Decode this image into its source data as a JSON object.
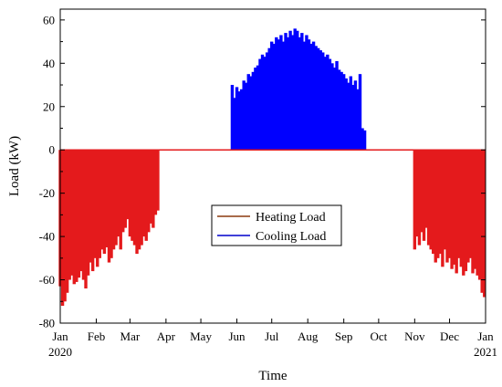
{
  "chart_data": {
    "type": "bar",
    "title": "",
    "xlabel": "Time",
    "ylabel": "Load (kW)",
    "ylim": [
      -80,
      65
    ],
    "yticks": [
      -80,
      -60,
      -40,
      -20,
      0,
      20,
      40,
      60
    ],
    "xrange_days": [
      0,
      366
    ],
    "xticks": [
      {
        "label": "Jan",
        "sub": "2020",
        "day": 0
      },
      {
        "label": "Feb",
        "sub": "",
        "day": 31
      },
      {
        "label": "Mar",
        "sub": "",
        "day": 60
      },
      {
        "label": "Apr",
        "sub": "",
        "day": 91
      },
      {
        "label": "May",
        "sub": "",
        "day": 121
      },
      {
        "label": "Jun",
        "sub": "",
        "day": 152
      },
      {
        "label": "Jul",
        "sub": "",
        "day": 182
      },
      {
        "label": "Aug",
        "sub": "",
        "day": 213
      },
      {
        "label": "Sep",
        "sub": "",
        "day": 244
      },
      {
        "label": "Oct",
        "sub": "",
        "day": 274
      },
      {
        "label": "Nov",
        "sub": "",
        "day": 305
      },
      {
        "label": "Dec",
        "sub": "",
        "day": 335
      },
      {
        "label": "Jan",
        "sub": "2021",
        "day": 366
      }
    ],
    "grid": false,
    "legend_position": "center",
    "series": [
      {
        "name": "Heating Load",
        "legend_color": "#8B3A0F",
        "bar_color": "#E41A1C",
        "days": [
          0,
          2,
          4,
          6,
          8,
          10,
          12,
          14,
          16,
          18,
          20,
          22,
          24,
          26,
          28,
          30,
          32,
          34,
          36,
          38,
          40,
          42,
          44,
          46,
          48,
          50,
          52,
          54,
          56,
          58,
          60,
          62,
          64,
          66,
          68,
          70,
          72,
          74,
          76,
          78,
          80,
          82,
          84,
          305,
          307,
          309,
          311,
          313,
          315,
          317,
          319,
          321,
          323,
          325,
          327,
          329,
          331,
          333,
          335,
          337,
          339,
          341,
          343,
          345,
          347,
          349,
          351,
          353,
          355,
          357,
          359,
          361,
          363,
          365
        ],
        "values": [
          -63,
          -72,
          -70,
          -66,
          -60,
          -58,
          -62,
          -61,
          -59,
          -56,
          -60,
          -64,
          -58,
          -52,
          -56,
          -50,
          -54,
          -50,
          -46,
          -48,
          -45,
          -52,
          -50,
          -46,
          -44,
          -40,
          -46,
          -38,
          -36,
          -32,
          -40,
          -42,
          -44,
          -48,
          -46,
          -44,
          -40,
          -42,
          -38,
          -34,
          -36,
          -30,
          -28,
          -46,
          -40,
          -44,
          -38,
          -42,
          -36,
          -44,
          -46,
          -48,
          -52,
          -50,
          -48,
          -54,
          -46,
          -52,
          -50,
          -55,
          -53,
          -57,
          -50,
          -54,
          -58,
          -56,
          -52,
          -50,
          -57,
          -55,
          -58,
          -60,
          -66,
          -68
        ]
      },
      {
        "name": "Cooling Load",
        "legend_color": "#0000CC",
        "bar_color": "#0000FF",
        "days": [
          148,
          150,
          152,
          154,
          156,
          158,
          160,
          162,
          164,
          166,
          168,
          170,
          172,
          174,
          176,
          178,
          180,
          182,
          184,
          186,
          188,
          190,
          192,
          194,
          196,
          198,
          200,
          202,
          204,
          206,
          208,
          210,
          212,
          214,
          216,
          218,
          220,
          222,
          224,
          226,
          228,
          230,
          232,
          234,
          236,
          238,
          240,
          242,
          244,
          246,
          248,
          250,
          252,
          254,
          256,
          258,
          260,
          262
        ],
        "values": [
          30,
          24,
          29,
          27,
          28,
          32,
          31,
          35,
          34,
          36,
          38,
          39,
          42,
          44,
          43,
          45,
          47,
          50,
          49,
          52,
          51,
          53,
          50,
          54,
          52,
          55,
          53,
          56,
          55,
          52,
          54,
          50,
          53,
          51,
          49,
          50,
          48,
          47,
          46,
          45,
          43,
          44,
          42,
          40,
          38,
          41,
          37,
          36,
          35,
          33,
          31,
          34,
          30,
          32,
          28,
          35,
          10,
          9
        ]
      }
    ]
  }
}
